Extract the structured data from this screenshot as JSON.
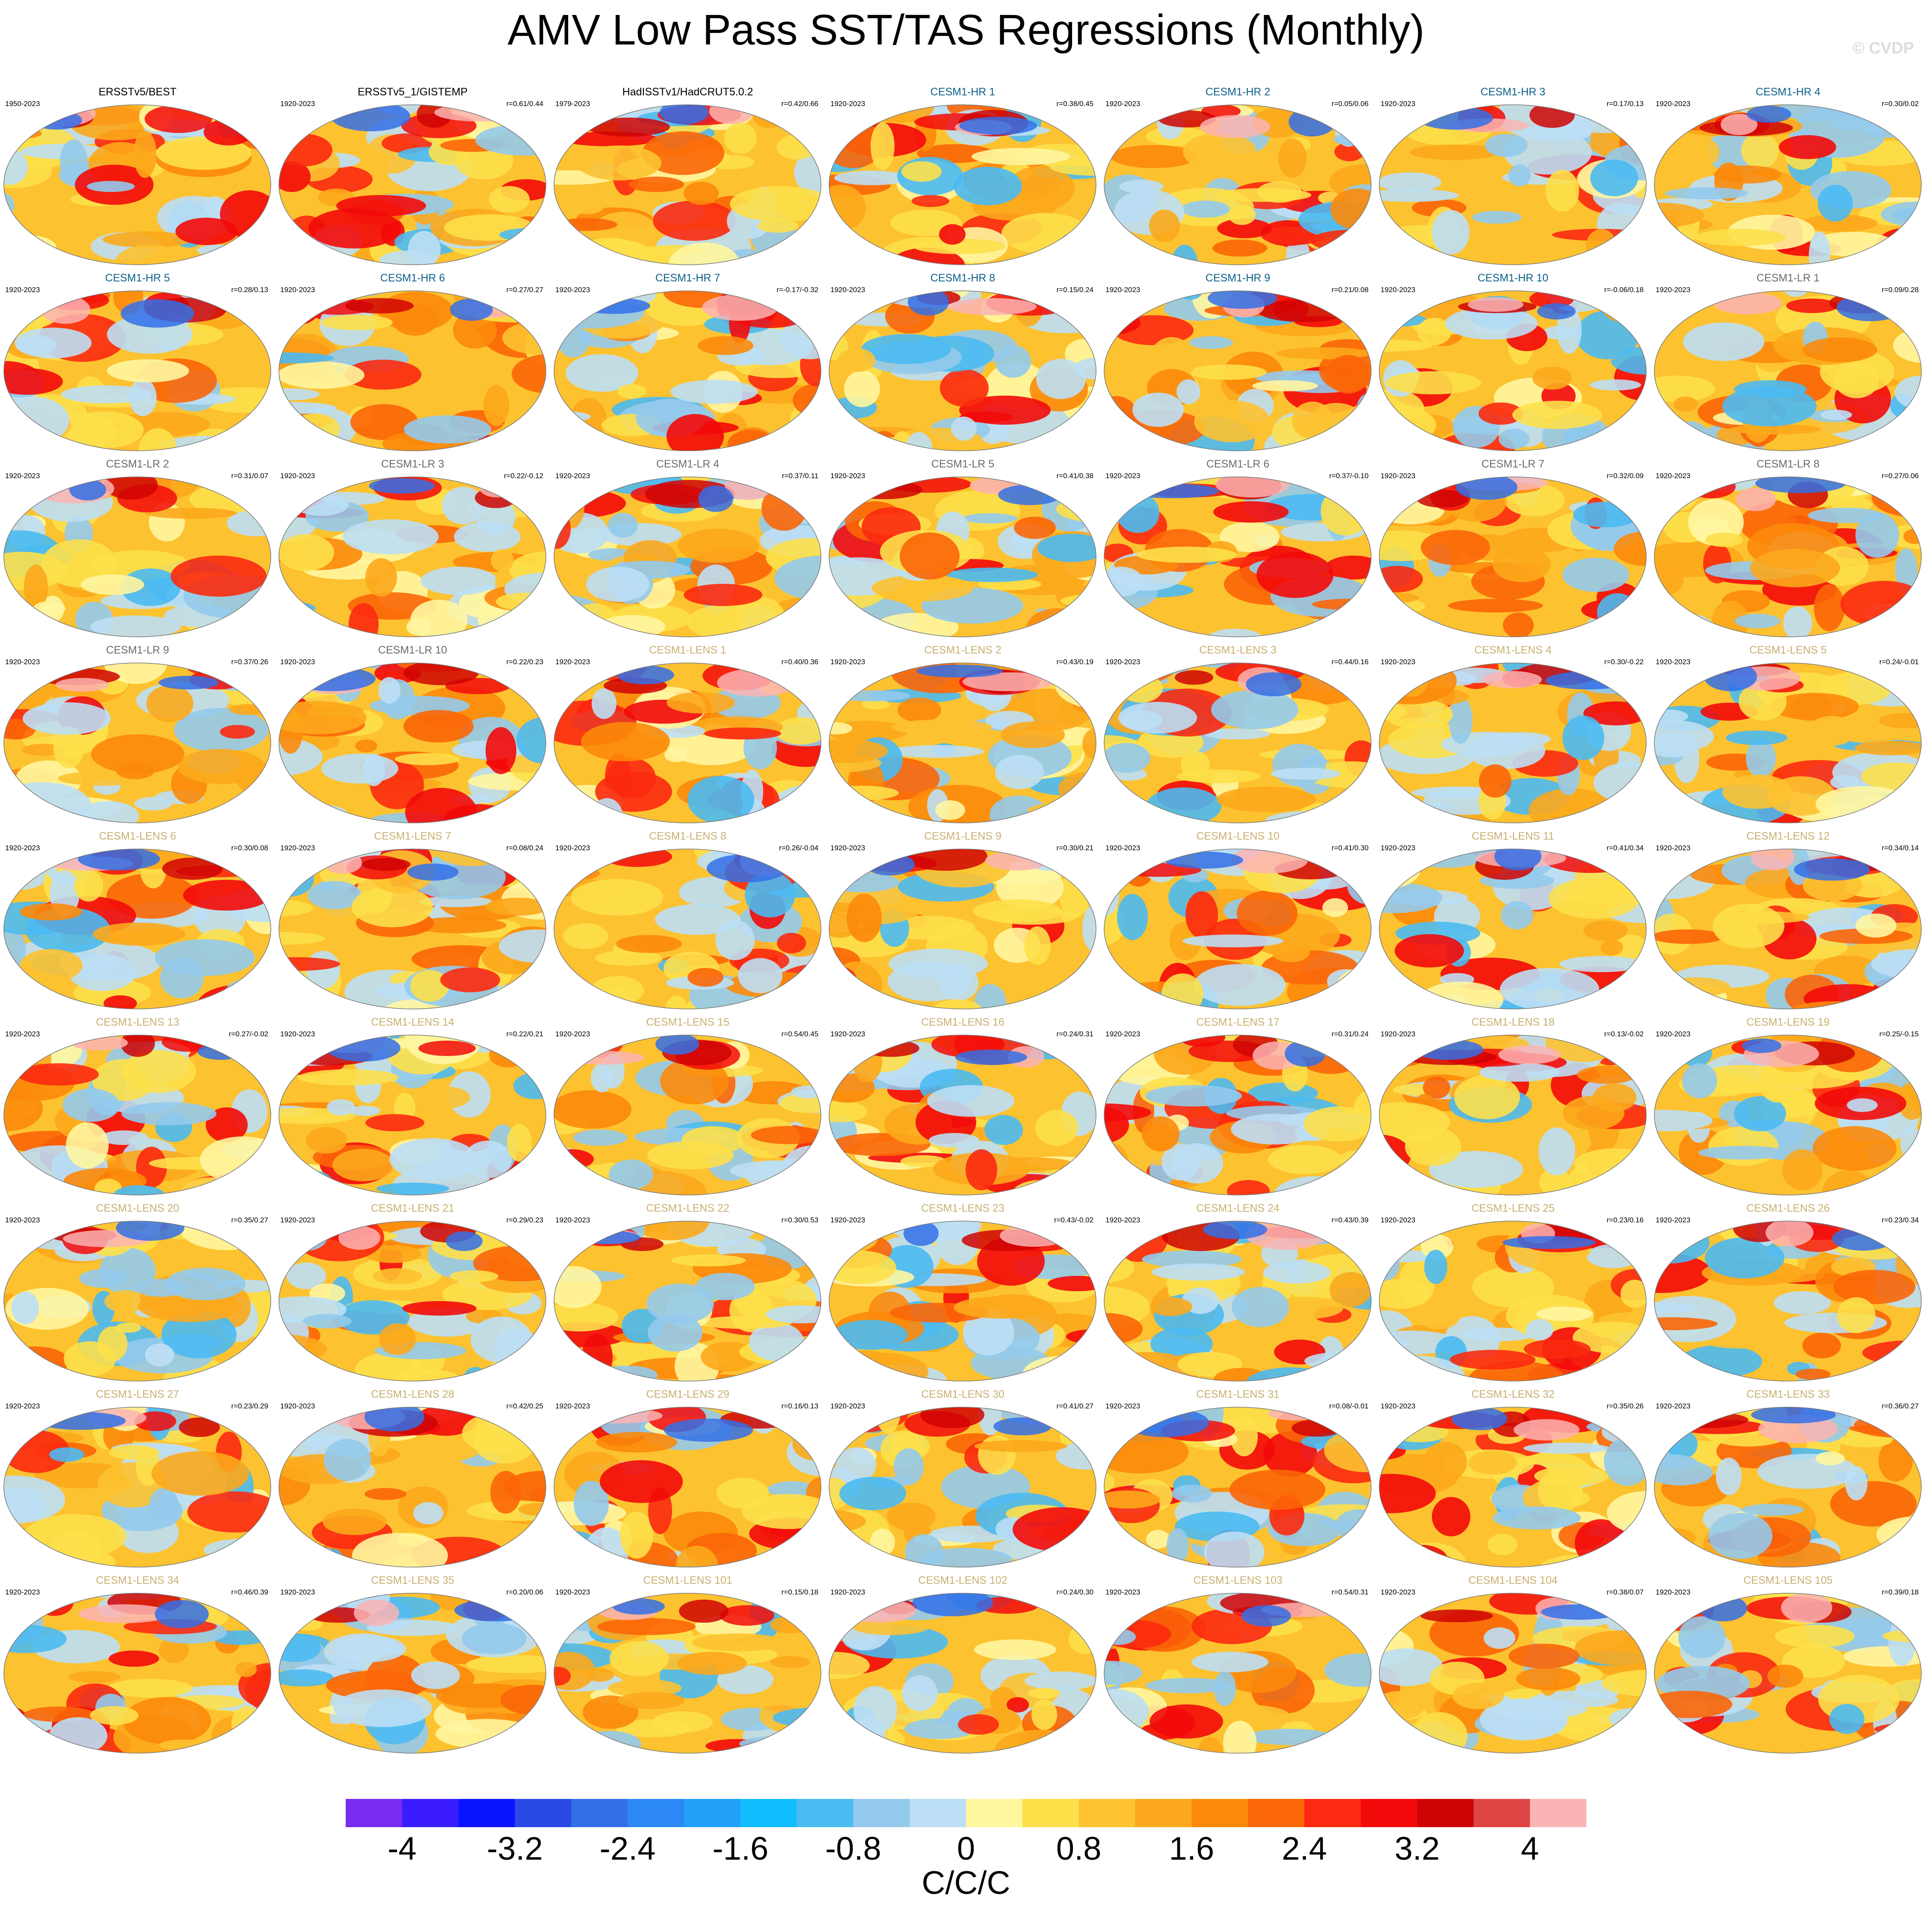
{
  "title": "AMV Low Pass SST/TAS Regressions (Monthly)",
  "watermark": "© CVDP",
  "title_colors": {
    "obs": "#000000",
    "hr": "#0b5f8a",
    "lr": "#6b6b6b",
    "lens": "#c8b070"
  },
  "panels": [
    {
      "title": "ERSSTv5/BEST",
      "years": "1950-2023",
      "corr": "",
      "kind": "obs"
    },
    {
      "title": "ERSSTv5_1/GISTEMP",
      "years": "1920-2023",
      "corr": "r=0.61/0.44",
      "kind": "obs"
    },
    {
      "title": "HadISSTv1/HadCRUT5.0.2",
      "years": "1979-2023",
      "corr": "r=0.42/0.66",
      "kind": "obs"
    },
    {
      "title": "CESM1-HR 1",
      "years": "1920-2023",
      "corr": "r=0.38/0.45",
      "kind": "hr"
    },
    {
      "title": "CESM1-HR 2",
      "years": "1920-2023",
      "corr": "r=0.05/0.06",
      "kind": "hr"
    },
    {
      "title": "CESM1-HR 3",
      "years": "1920-2023",
      "corr": "r=0.17/0.13",
      "kind": "hr"
    },
    {
      "title": "CESM1-HR 4",
      "years": "1920-2023",
      "corr": "r=0.30/0.02",
      "kind": "hr"
    },
    {
      "title": "CESM1-HR 5",
      "years": "1920-2023",
      "corr": "r=0.28/0.13",
      "kind": "hr"
    },
    {
      "title": "CESM1-HR 6",
      "years": "1920-2023",
      "corr": "r=0.27/0.27",
      "kind": "hr"
    },
    {
      "title": "CESM1-HR 7",
      "years": "1920-2023",
      "corr": "r=-0.17/-0.32",
      "kind": "hr"
    },
    {
      "title": "CESM1-HR 8",
      "years": "1920-2023",
      "corr": "r=0.15/0.24",
      "kind": "hr"
    },
    {
      "title": "CESM1-HR 9",
      "years": "1920-2023",
      "corr": "r=0.21/0.08",
      "kind": "hr"
    },
    {
      "title": "CESM1-HR 10",
      "years": "1920-2023",
      "corr": "r=-0.06/0.18",
      "kind": "hr"
    },
    {
      "title": "CESM1-LR 1",
      "years": "1920-2023",
      "corr": "r=0.09/0.28",
      "kind": "lr"
    },
    {
      "title": "CESM1-LR 2",
      "years": "1920-2023",
      "corr": "r=0.31/0.07",
      "kind": "lr"
    },
    {
      "title": "CESM1-LR 3",
      "years": "1920-2023",
      "corr": "r=0.22/-0.12",
      "kind": "lr"
    },
    {
      "title": "CESM1-LR 4",
      "years": "1920-2023",
      "corr": "r=0.37/0.11",
      "kind": "lr"
    },
    {
      "title": "CESM1-LR 5",
      "years": "1920-2023",
      "corr": "r=0.41/0.38",
      "kind": "lr"
    },
    {
      "title": "CESM1-LR 6",
      "years": "1920-2023",
      "corr": "r=0.37/-0.10",
      "kind": "lr"
    },
    {
      "title": "CESM1-LR 7",
      "years": "1920-2023",
      "corr": "r=0.32/0.09",
      "kind": "lr"
    },
    {
      "title": "CESM1-LR 8",
      "years": "1920-2023",
      "corr": "r=0.27/0.06",
      "kind": "lr"
    },
    {
      "title": "CESM1-LR 9",
      "years": "1920-2023",
      "corr": "r=0.37/0.26",
      "kind": "lr"
    },
    {
      "title": "CESM1-LR 10",
      "years": "1920-2023",
      "corr": "r=0.22/0.23",
      "kind": "lr"
    },
    {
      "title": "CESM1-LENS 1",
      "years": "1920-2023",
      "corr": "r=0.40/0.36",
      "kind": "lens"
    },
    {
      "title": "CESM1-LENS 2",
      "years": "1920-2023",
      "corr": "r=0.43/0.19",
      "kind": "lens"
    },
    {
      "title": "CESM1-LENS 3",
      "years": "1920-2023",
      "corr": "r=0.44/0.16",
      "kind": "lens"
    },
    {
      "title": "CESM1-LENS 4",
      "years": "1920-2023",
      "corr": "r=0.30/-0.22",
      "kind": "lens"
    },
    {
      "title": "CESM1-LENS 5",
      "years": "1920-2023",
      "corr": "r=0.24/-0.01",
      "kind": "lens"
    },
    {
      "title": "CESM1-LENS 6",
      "years": "1920-2023",
      "corr": "r=0.30/0.08",
      "kind": "lens"
    },
    {
      "title": "CESM1-LENS 7",
      "years": "1920-2023",
      "corr": "r=0.08/0.24",
      "kind": "lens"
    },
    {
      "title": "CESM1-LENS 8",
      "years": "1920-2023",
      "corr": "r=0.26/-0.04",
      "kind": "lens"
    },
    {
      "title": "CESM1-LENS 9",
      "years": "1920-2023",
      "corr": "r=0.30/0.21",
      "kind": "lens"
    },
    {
      "title": "CESM1-LENS 10",
      "years": "1920-2023",
      "corr": "r=0.41/0.30",
      "kind": "lens"
    },
    {
      "title": "CESM1-LENS 11",
      "years": "1920-2023",
      "corr": "r=0.41/0.34",
      "kind": "lens"
    },
    {
      "title": "CESM1-LENS 12",
      "years": "1920-2023",
      "corr": "r=0.34/0.14",
      "kind": "lens"
    },
    {
      "title": "CESM1-LENS 13",
      "years": "1920-2023",
      "corr": "r=0.27/-0.02",
      "kind": "lens"
    },
    {
      "title": "CESM1-LENS 14",
      "years": "1920-2023",
      "corr": "r=0.22/0.21",
      "kind": "lens"
    },
    {
      "title": "CESM1-LENS 15",
      "years": "1920-2023",
      "corr": "r=0.54/0.45",
      "kind": "lens"
    },
    {
      "title": "CESM1-LENS 16",
      "years": "1920-2023",
      "corr": "r=0.24/0.31",
      "kind": "lens"
    },
    {
      "title": "CESM1-LENS 17",
      "years": "1920-2023",
      "corr": "r=0.31/0.24",
      "kind": "lens"
    },
    {
      "title": "CESM1-LENS 18",
      "years": "1920-2023",
      "corr": "r=0.13/-0.02",
      "kind": "lens"
    },
    {
      "title": "CESM1-LENS 19",
      "years": "1920-2023",
      "corr": "r=0.25/-0.15",
      "kind": "lens"
    },
    {
      "title": "CESM1-LENS 20",
      "years": "1920-2023",
      "corr": "r=0.35/0.27",
      "kind": "lens"
    },
    {
      "title": "CESM1-LENS 21",
      "years": "1920-2023",
      "corr": "r=0.29/0.23",
      "kind": "lens"
    },
    {
      "title": "CESM1-LENS 22",
      "years": "1920-2023",
      "corr": "r=0.30/0.53",
      "kind": "lens"
    },
    {
      "title": "CESM1-LENS 23",
      "years": "1920-2023",
      "corr": "r=0.43/-0.02",
      "kind": "lens"
    },
    {
      "title": "CESM1-LENS 24",
      "years": "1920-2023",
      "corr": "r=0.43/0.39",
      "kind": "lens"
    },
    {
      "title": "CESM1-LENS 25",
      "years": "1920-2023",
      "corr": "r=0.23/0.16",
      "kind": "lens"
    },
    {
      "title": "CESM1-LENS 26",
      "years": "1920-2023",
      "corr": "r=0.23/0.34",
      "kind": "lens"
    },
    {
      "title": "CESM1-LENS 27",
      "years": "1920-2023",
      "corr": "r=0.23/0.29",
      "kind": "lens"
    },
    {
      "title": "CESM1-LENS 28",
      "years": "1920-2023",
      "corr": "r=0.42/0.25",
      "kind": "lens"
    },
    {
      "title": "CESM1-LENS 29",
      "years": "1920-2023",
      "corr": "r=0.16/0.13",
      "kind": "lens"
    },
    {
      "title": "CESM1-LENS 30",
      "years": "1920-2023",
      "corr": "r=0.41/0.27",
      "kind": "lens"
    },
    {
      "title": "CESM1-LENS 31",
      "years": "1920-2023",
      "corr": "r=0.08/-0.01",
      "kind": "lens"
    },
    {
      "title": "CESM1-LENS 32",
      "years": "1920-2023",
      "corr": "r=0.35/0.26",
      "kind": "lens"
    },
    {
      "title": "CESM1-LENS 33",
      "years": "1920-2023",
      "corr": "r=0.36/0.27",
      "kind": "lens"
    },
    {
      "title": "CESM1-LENS 34",
      "years": "1920-2023",
      "corr": "r=0.46/0.39",
      "kind": "lens"
    },
    {
      "title": "CESM1-LENS 35",
      "years": "1920-2023",
      "corr": "r=0.20/0.06",
      "kind": "lens"
    },
    {
      "title": "CESM1-LENS 101",
      "years": "1920-2023",
      "corr": "r=0.15/0.18",
      "kind": "lens"
    },
    {
      "title": "CESM1-LENS 102",
      "years": "1920-2023",
      "corr": "r=0.24/0.30",
      "kind": "lens"
    },
    {
      "title": "CESM1-LENS 103",
      "years": "1920-2023",
      "corr": "r=0.54/0.31",
      "kind": "lens"
    },
    {
      "title": "CESM1-LENS 104",
      "years": "1920-2023",
      "corr": "r=0.38/0.07",
      "kind": "lens"
    },
    {
      "title": "CESM1-LENS 105",
      "years": "1920-2023",
      "corr": "r=0.39/0.18",
      "kind": "lens"
    }
  ],
  "colorbar": {
    "colors": [
      "#7a2bf0",
      "#3a1cff",
      "#0a14ff",
      "#2a4ae6",
      "#3270e8",
      "#2b88f5",
      "#22a0fa",
      "#10beff",
      "#4bbaf2",
      "#93caec",
      "#bcdff5",
      "#fff6a0",
      "#fde04a",
      "#fdc230",
      "#fca81c",
      "#fc8a0a",
      "#fb6608",
      "#fb2a10",
      "#f30a0a",
      "#cf0404",
      "#df4545",
      "#fbb4b4"
    ],
    "tick_labels": [
      "-4",
      "-3.2",
      "-2.4",
      "-1.6",
      "-0.8",
      "0",
      "0.8",
      "1.6",
      "2.4",
      "3.2",
      "4"
    ],
    "units": "C/C/C"
  }
}
